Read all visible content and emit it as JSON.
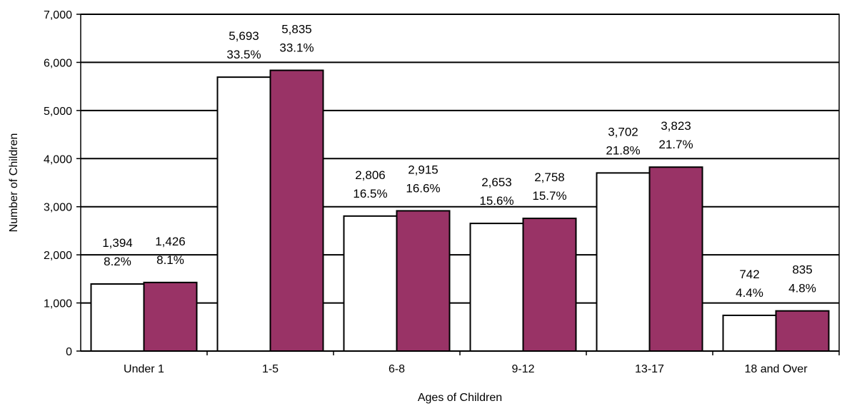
{
  "chart_data": {
    "type": "bar",
    "title": "",
    "xlabel": "Ages of Children",
    "ylabel": "Number of Children",
    "ylim": [
      0,
      7000
    ],
    "yticks": [
      0,
      1000,
      2000,
      3000,
      4000,
      5000,
      6000,
      7000
    ],
    "ytick_labels": [
      "0",
      "1,000",
      "2,000",
      "3,000",
      "4,000",
      "5,000",
      "6,000",
      "7,000"
    ],
    "grid": true,
    "legend": "none",
    "categories": [
      "Under 1",
      "1-5",
      "6-8",
      "9-12",
      "13-17",
      "18 and Over"
    ],
    "series": [
      {
        "color": "#ffffff",
        "values": [
          1394,
          5693,
          2806,
          2653,
          3702,
          742
        ],
        "value_labels": [
          "1,394",
          "5,693",
          "2,806",
          "2,653",
          "3,702",
          "742"
        ],
        "percent_labels": [
          "8.2%",
          "33.5%",
          "16.5%",
          "15.6%",
          "21.8%",
          "4.4%"
        ]
      },
      {
        "color": "#993366",
        "values": [
          1426,
          5835,
          2915,
          2758,
          3823,
          835
        ],
        "value_labels": [
          "1,426",
          "5,835",
          "2,915",
          "2,758",
          "3,823",
          "835"
        ],
        "percent_labels": [
          "8.1%",
          "33.1%",
          "16.6%",
          "15.7%",
          "21.7%",
          "4.8%"
        ]
      }
    ]
  }
}
